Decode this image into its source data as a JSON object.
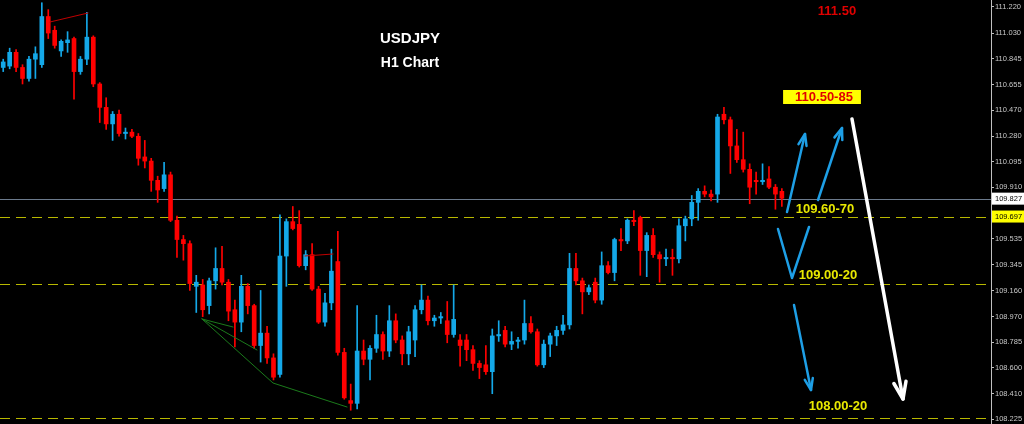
{
  "chart_data": {
    "type": "candlestick",
    "title": "USDJPY",
    "subtitle": "H1 Chart",
    "categories": [
      null,
      null,
      null,
      null,
      null,
      null,
      null,
      null,
      null,
      null,
      null,
      null,
      null,
      null,
      null,
      null,
      null,
      null,
      null,
      null,
      null,
      null,
      null,
      null,
      null,
      null,
      null,
      null,
      null,
      null,
      null,
      null,
      null,
      null,
      null,
      null,
      null,
      null,
      null,
      null,
      null,
      null,
      null,
      null,
      null,
      null,
      null,
      null,
      null,
      null,
      null,
      null,
      null,
      null,
      null,
      null,
      null,
      null,
      null,
      null,
      null,
      null,
      null,
      null,
      null,
      null,
      null,
      null,
      null,
      null,
      null,
      null,
      null,
      null,
      null,
      null,
      null,
      null,
      null,
      null,
      null,
      null,
      null,
      null,
      null,
      null,
      null,
      null,
      null,
      null,
      null,
      null,
      null,
      null,
      null,
      null,
      null,
      null,
      null,
      null,
      null,
      null,
      null,
      null,
      null,
      null,
      null,
      null,
      null,
      null,
      null,
      null,
      null,
      null,
      null,
      null,
      null,
      null,
      null,
      null,
      null,
      null,
      null,
      null,
      null,
      null,
      null,
      null,
      null,
      null,
      null,
      null,
      null,
      null,
      null,
      null,
      null,
      null,
      null,
      null,
      null,
      null,
      null,
      null,
      null,
      null,
      null,
      null,
      null,
      null,
      null,
      null,
      null,
      null
    ],
    "ohlc": [
      [
        110.78,
        110.84,
        110.75,
        110.82
      ],
      [
        110.79,
        110.92,
        110.77,
        110.89
      ],
      [
        110.89,
        110.91,
        110.75,
        110.78
      ],
      [
        110.78,
        110.8,
        110.66,
        110.7
      ],
      [
        110.7,
        110.86,
        110.68,
        110.84
      ],
      [
        110.84,
        110.93,
        110.7,
        110.88
      ],
      [
        110.8,
        111.25,
        110.78,
        111.15
      ],
      [
        111.15,
        111.2,
        110.99,
        111.03
      ],
      [
        111.05,
        111.08,
        110.92,
        110.94
      ],
      [
        110.9,
        110.98,
        110.86,
        110.97
      ],
      [
        110.96,
        111.04,
        110.89,
        110.98
      ],
      [
        110.99,
        111.0,
        110.55,
        110.75
      ],
      [
        110.75,
        110.86,
        110.73,
        110.84
      ],
      [
        110.84,
        111.18,
        110.8,
        111.0
      ],
      [
        111.0,
        111.01,
        110.64,
        110.66
      ],
      [
        110.66,
        110.67,
        110.38,
        110.49
      ],
      [
        110.49,
        110.56,
        110.33,
        110.37
      ],
      [
        110.37,
        110.46,
        110.25,
        110.44
      ],
      [
        110.44,
        110.47,
        110.28,
        110.3
      ],
      [
        110.3,
        110.34,
        110.26,
        110.31
      ],
      [
        110.31,
        110.33,
        110.27,
        110.28
      ],
      [
        110.28,
        110.3,
        110.07,
        110.12
      ],
      [
        110.13,
        110.25,
        110.05,
        110.1
      ],
      [
        110.1,
        110.12,
        109.88,
        109.96
      ],
      [
        109.96,
        109.99,
        109.8,
        109.89
      ],
      [
        109.9,
        110.09,
        109.88,
        110.0
      ],
      [
        110.0,
        110.02,
        109.66,
        109.67
      ],
      [
        109.67,
        109.7,
        109.4,
        109.53
      ],
      [
        109.53,
        109.56,
        109.38,
        109.5
      ],
      [
        109.5,
        109.52,
        109.16,
        109.21
      ],
      [
        109.19,
        109.27,
        109.0,
        109.22
      ],
      [
        109.2,
        109.24,
        108.97,
        109.02
      ],
      [
        109.05,
        109.25,
        108.99,
        109.23
      ],
      [
        109.23,
        109.47,
        109.17,
        109.32
      ],
      [
        109.32,
        109.48,
        109.2,
        109.22
      ],
      [
        109.22,
        109.24,
        108.94,
        109.01
      ],
      [
        109.02,
        109.09,
        108.75,
        108.93
      ],
      [
        108.93,
        109.27,
        108.86,
        109.19
      ],
      [
        109.19,
        109.21,
        108.99,
        109.05
      ],
      [
        109.05,
        109.06,
        108.74,
        108.76
      ],
      [
        108.76,
        109.16,
        108.64,
        108.85
      ],
      [
        108.85,
        108.9,
        108.63,
        108.67
      ],
      [
        108.67,
        108.7,
        108.51,
        108.53
      ],
      [
        108.55,
        109.71,
        108.53,
        109.41
      ],
      [
        109.41,
        109.68,
        109.19,
        109.66
      ],
      [
        109.66,
        109.77,
        109.6,
        109.61
      ],
      [
        109.64,
        109.74,
        109.33,
        109.34
      ],
      [
        109.34,
        109.45,
        109.31,
        109.42
      ],
      [
        109.42,
        109.5,
        109.16,
        109.17
      ],
      [
        109.17,
        109.19,
        108.92,
        108.93
      ],
      [
        108.93,
        109.14,
        108.9,
        109.07
      ],
      [
        109.07,
        109.46,
        109.02,
        109.3
      ],
      [
        109.37,
        109.59,
        108.69,
        108.71
      ],
      [
        108.71,
        108.74,
        108.37,
        108.38
      ],
      [
        108.36,
        108.48,
        108.29,
        108.34
      ],
      [
        108.34,
        109.05,
        108.3,
        108.72
      ],
      [
        108.72,
        108.8,
        108.62,
        108.66
      ],
      [
        108.66,
        108.76,
        108.51,
        108.74
      ],
      [
        108.74,
        108.98,
        108.71,
        108.84
      ],
      [
        108.84,
        108.86,
        108.66,
        108.72
      ],
      [
        108.72,
        109.05,
        108.68,
        108.94
      ],
      [
        108.94,
        108.99,
        108.78,
        108.8
      ],
      [
        108.8,
        108.83,
        108.62,
        108.7
      ],
      [
        108.7,
        108.9,
        108.62,
        108.86
      ],
      [
        108.8,
        109.05,
        108.68,
        109.02
      ],
      [
        109.02,
        109.2,
        108.99,
        109.09
      ],
      [
        109.09,
        109.12,
        108.91,
        108.94
      ],
      [
        108.94,
        108.98,
        108.9,
        108.96
      ],
      [
        108.96,
        109.0,
        108.92,
        108.97
      ],
      [
        108.94,
        109.08,
        108.78,
        108.84
      ],
      [
        108.84,
        109.2,
        108.82,
        108.95
      ],
      [
        108.8,
        108.84,
        108.61,
        108.76
      ],
      [
        108.8,
        108.84,
        108.65,
        108.73
      ],
      [
        108.73,
        108.76,
        108.58,
        108.63
      ],
      [
        108.63,
        108.65,
        108.52,
        108.6
      ],
      [
        108.62,
        108.76,
        108.55,
        108.57
      ],
      [
        108.57,
        108.88,
        108.41,
        108.83
      ],
      [
        108.83,
        108.94,
        108.79,
        108.84
      ],
      [
        108.87,
        108.9,
        108.75,
        108.77
      ],
      [
        108.77,
        108.86,
        108.73,
        108.79
      ],
      [
        108.79,
        108.82,
        108.74,
        108.8
      ],
      [
        108.8,
        109.09,
        108.77,
        108.92
      ],
      [
        108.92,
        108.97,
        108.85,
        108.86
      ],
      [
        108.86,
        108.88,
        108.61,
        108.62
      ],
      [
        108.62,
        108.8,
        108.6,
        108.77
      ],
      [
        108.77,
        108.85,
        108.68,
        108.83
      ],
      [
        108.83,
        108.9,
        108.76,
        108.87
      ],
      [
        108.87,
        108.98,
        108.84,
        108.91
      ],
      [
        108.91,
        109.43,
        108.88,
        109.32
      ],
      [
        109.32,
        109.43,
        109.2,
        109.23
      ],
      [
        109.23,
        109.25,
        108.99,
        109.15
      ],
      [
        109.15,
        109.2,
        109.13,
        109.18
      ],
      [
        109.22,
        109.25,
        109.07,
        109.09
      ],
      [
        109.09,
        109.44,
        109.06,
        109.34
      ],
      [
        109.34,
        109.37,
        109.28,
        109.29
      ],
      [
        109.29,
        109.54,
        109.23,
        109.53
      ],
      [
        109.53,
        109.61,
        109.45,
        109.52
      ],
      [
        109.52,
        109.68,
        109.5,
        109.67
      ],
      [
        109.67,
        109.74,
        109.63,
        109.66
      ],
      [
        109.69,
        109.7,
        109.27,
        109.45
      ],
      [
        109.45,
        109.58,
        109.26,
        109.56
      ],
      [
        109.56,
        109.61,
        109.4,
        109.42
      ],
      [
        109.42,
        109.44,
        109.22,
        109.39
      ],
      [
        109.39,
        109.46,
        109.34,
        109.4
      ],
      [
        109.4,
        109.46,
        109.27,
        109.39
      ],
      [
        109.39,
        109.68,
        109.36,
        109.63
      ],
      [
        109.63,
        109.7,
        109.52,
        109.68
      ],
      [
        109.68,
        109.85,
        109.63,
        109.8
      ],
      [
        109.8,
        109.9,
        109.67,
        109.88
      ],
      [
        109.88,
        109.92,
        109.84,
        109.86
      ],
      [
        109.86,
        109.89,
        109.81,
        109.84
      ],
      [
        109.86,
        110.44,
        109.8,
        110.42
      ],
      [
        110.44,
        110.49,
        110.37,
        110.4
      ],
      [
        110.4,
        110.42,
        110.01,
        110.21
      ],
      [
        110.21,
        110.33,
        110.09,
        110.11
      ],
      [
        110.11,
        110.31,
        110.02,
        110.04
      ],
      [
        110.04,
        110.08,
        109.79,
        109.91
      ],
      [
        109.96,
        110.02,
        109.86,
        109.95
      ],
      [
        109.95,
        110.08,
        109.93,
        109.96
      ],
      [
        109.97,
        110.06,
        109.9,
        109.91
      ],
      [
        109.91,
        109.93,
        109.75,
        109.86
      ],
      [
        109.88,
        109.9,
        109.77,
        109.83
      ],
      null,
      null,
      null,
      null,
      null,
      null,
      null,
      null,
      null,
      null,
      null,
      null,
      null,
      null,
      null,
      null,
      null,
      null,
      null,
      null,
      null,
      null,
      null,
      null,
      null,
      null,
      null,
      null,
      null,
      null,
      null,
      null
    ],
    "colors": [
      "#14a8e8",
      "#14a8e8",
      "#ff0000",
      "#ff0000",
      "#14a8e8",
      "#14a8e8",
      "#14a8e8",
      "#ff0000",
      "#ff0000",
      "#14a8e8",
      "#14a8e8",
      "#ff0000",
      "#14a8e8",
      "#14a8e8",
      "#ff0000",
      "#ff0000",
      "#ff0000",
      "#14a8e8",
      "#ff0000",
      "#14a8e8",
      "#ff0000",
      "#ff0000",
      "#ff0000",
      "#ff0000",
      "#ff0000",
      "#14a8e8",
      "#ff0000",
      "#ff0000",
      "#ff0000",
      "#ff0000",
      "#14a8e8",
      "#ff0000",
      "#14a8e8",
      "#14a8e8",
      "#ff0000",
      "#ff0000",
      "#ff0000",
      "#14a8e8",
      "#ff0000",
      "#ff0000",
      "#14a8e8",
      "#ff0000",
      "#ff0000",
      "#14a8e8",
      "#14a8e8",
      "#ff0000",
      "#ff0000",
      "#14a8e8",
      "#ff0000",
      "#ff0000",
      "#14a8e8",
      "#14a8e8",
      "#ff0000",
      "#ff0000",
      "#ff0000",
      "#14a8e8",
      "#ff0000",
      "#14a8e8",
      "#14a8e8",
      "#ff0000",
      "#14a8e8",
      "#ff0000",
      "#ff0000",
      "#14a8e8",
      "#14a8e8",
      "#14a8e8",
      "#ff0000",
      "#14a8e8",
      "#14a8e8",
      "#ff0000",
      "#14a8e8",
      "#ff0000",
      "#ff0000",
      "#ff0000",
      "#ff0000",
      "#ff0000",
      "#14a8e8",
      "#14a8e8",
      "#ff0000",
      "#14a8e8",
      "#14a8e8",
      "#14a8e8",
      "#ff0000",
      "#ff0000",
      "#14a8e8",
      "#14a8e8",
      "#14a8e8",
      "#14a8e8",
      "#14a8e8",
      "#ff0000",
      "#ff0000",
      "#14a8e8",
      "#ff0000",
      "#14a8e8",
      "#ff0000",
      "#14a8e8",
      "#ff0000",
      "#14a8e8",
      "#ff0000",
      "#ff0000",
      "#14a8e8",
      "#ff0000",
      "#ff0000",
      "#14a8e8",
      "#ff0000",
      "#14a8e8",
      "#14a8e8",
      "#14a8e8",
      "#14a8e8",
      "#ff0000",
      "#ff0000",
      "#14a8e8",
      "#ff0000",
      "#ff0000",
      "#ff0000",
      "#ff0000",
      "#ff0000",
      "#ff0000",
      "#14a8e8",
      "#ff0000",
      "#ff0000",
      "#ff0000",
      null,
      null,
      null,
      null,
      null,
      null,
      null,
      null,
      null,
      null,
      null,
      null,
      null,
      null,
      null,
      null,
      null,
      null,
      null,
      null,
      null,
      null,
      null,
      null,
      null,
      null,
      null,
      null,
      null,
      null,
      null,
      null
    ],
    "ylim": [
      108.19,
      111.27
    ],
    "yticks": [
      {
        "value": 111.22,
        "label": "111.220"
      },
      {
        "value": 111.03,
        "label": "111.030"
      },
      110.845,
      110.655,
      {
        "value": 110.47,
        "label": "110.470"
      },
      {
        "value": 110.28,
        "label": "110.280"
      },
      110.095,
      {
        "value": 109.91,
        "label": "109.910"
      },
      109.535,
      109.345,
      {
        "value": 109.16,
        "label": "109.160"
      },
      {
        "value": 108.97,
        "label": "108.970"
      },
      108.785,
      {
        "value": 108.6,
        "label": "108.600"
      },
      {
        "value": 108.41,
        "label": "108.410"
      },
      108.225
    ],
    "ref_lines": [
      {
        "axis": "y",
        "value": 109.827,
        "label": "109.827",
        "color": "#6b7a8c"
      },
      {
        "axis": "y",
        "value": 109.697,
        "label": "109.697",
        "color": "#b8b800",
        "line_style": "dashed"
      },
      {
        "axis": "y",
        "value": 109.21,
        "color": "#b8b800",
        "line_style": "dashed"
      },
      {
        "axis": "y",
        "value": 108.23,
        "color": "#b8b800",
        "line_style": "dashed"
      }
    ],
    "annotations": [
      "111.50",
      "110.50-85",
      {
        "text": "109.60-70",
        "y": 109.697
      },
      {
        "text": "109.00-20",
        "y": 109.21
      },
      {
        "text": "108.00-20",
        "y": 108.23
      }
    ]
  }
}
